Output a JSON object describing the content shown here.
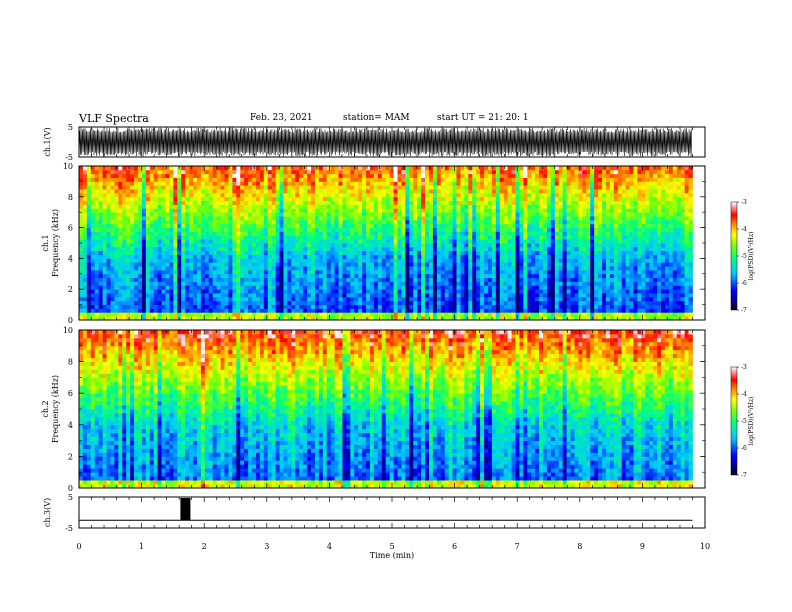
{
  "header": {
    "title": "VLF Spectra",
    "date": "Feb. 23, 2021",
    "station": "station= MAM",
    "start_ut": "start  UT  =   21: 20: 1"
  },
  "chart_data": [
    {
      "type": "line",
      "panel": "ch1-waveform",
      "ylabel": "ch.1(V)",
      "yticks": [
        "5",
        "-5"
      ],
      "ylim": [
        -5,
        5
      ],
      "xlim": [
        0,
        10
      ],
      "description_values": {
        "amplitude_fill": "dense oscillation spanning most of the range"
      }
    },
    {
      "type": "heatmap",
      "panel": "ch1-spectrogram",
      "ylabel_line1": "ch.1",
      "ylabel_line2": "Frequency  (kHz)",
      "yticks": [
        "0",
        "2",
        "4",
        "6",
        "8",
        "10"
      ],
      "ylim": [
        0,
        10
      ],
      "xlim": [
        0,
        10
      ],
      "data_end_min": 9.8,
      "colorbar": {
        "label": "log(PSD)(V²/Hz)",
        "ticks": [
          "-3",
          "-4",
          "-5",
          "-6",
          "-7"
        ],
        "range": [
          -7,
          -3
        ],
        "colors": [
          "#000080",
          "#0000ff",
          "#00c8ff",
          "#00ff80",
          "#80ff00",
          "#ffff00",
          "#ff8000",
          "#ff0000",
          "#ffffff"
        ]
      }
    },
    {
      "type": "heatmap",
      "panel": "ch2-spectrogram",
      "ylabel_line1": "ch.2",
      "ylabel_line2": "Frequency  (kHz)",
      "yticks": [
        "0",
        "2",
        "4",
        "6",
        "8",
        "10"
      ],
      "ylim": [
        0,
        10
      ],
      "xlim": [
        0,
        10
      ],
      "data_end_min": 9.8,
      "colorbar": {
        "label": "log(PSD)(V²/Hz)",
        "ticks": [
          "-3",
          "-4",
          "-5",
          "-6",
          "-7"
        ],
        "range": [
          -7,
          -3
        ]
      }
    },
    {
      "type": "line",
      "panel": "ch3-waveform",
      "ylabel": "ch.3(V)",
      "yticks": [
        "5",
        "-5"
      ],
      "ylim": [
        -5,
        5
      ],
      "xlim": [
        0,
        10
      ],
      "baseline_v": -2.5,
      "pulse": {
        "start_min": 1.62,
        "end_min": 1.78
      }
    }
  ],
  "xaxis": {
    "label": "Time  (min)",
    "ticks": [
      "0",
      "1",
      "2",
      "3",
      "4",
      "5",
      "6",
      "7",
      "8",
      "9",
      "10"
    ]
  }
}
